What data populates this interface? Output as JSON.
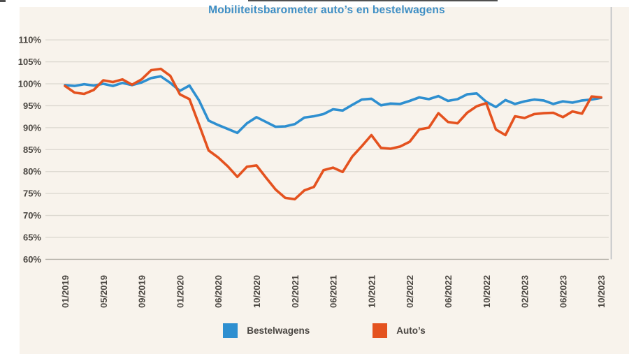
{
  "page": {
    "background": "#ffffff",
    "panel_background": "#f8f3ec"
  },
  "chart_data": {
    "type": "line",
    "title": "Mobiliteitsbarometer auto’s en bestelwagens",
    "title_color": "#3d8ec5",
    "xlabel": "",
    "ylabel": "",
    "ylim": [
      60,
      110
    ],
    "grid": "horizontal",
    "legend_position": "bottom",
    "y_tick_labels": [
      "110%",
      "105%",
      "100%",
      "95%",
      "90%",
      "85%",
      "80%",
      "75%",
      "70%",
      "65%",
      "60%"
    ],
    "x_tick_every": 4,
    "x_tick_labels": [
      "01/2019",
      "05/2019",
      "09/2019",
      "01/2020",
      "06/2020",
      "10/2020",
      "02/2021",
      "06/2021",
      "10/2021",
      "02/2022",
      "06/2022",
      "10/2022",
      "02/2023",
      "06/2023",
      "10/2023"
    ],
    "categories": [
      "01/2019",
      "02/2019",
      "03/2019",
      "04/2019",
      "05/2019",
      "06/2019",
      "07/2019",
      "08/2019",
      "09/2019",
      "10/2019",
      "11/2019",
      "12/2019",
      "01/2020",
      "02/2020",
      "03/2020",
      "05/2020",
      "06/2020",
      "07/2020",
      "08/2020",
      "09/2020",
      "10/2020",
      "11/2020",
      "12/2020",
      "01/2021",
      "02/2021",
      "03/2021",
      "04/2021",
      "05/2021",
      "06/2021",
      "07/2021",
      "08/2021",
      "09/2021",
      "10/2021",
      "11/2021",
      "12/2021",
      "01/2022",
      "02/2022",
      "03/2022",
      "04/2022",
      "05/2022",
      "06/2022",
      "07/2022",
      "08/2022",
      "09/2022",
      "10/2022",
      "11/2022",
      "12/2022",
      "01/2023",
      "02/2023",
      "03/2023",
      "04/2023",
      "05/2023",
      "06/2023",
      "07/2023",
      "08/2023",
      "09/2023",
      "10/2023"
    ],
    "series": [
      {
        "name": "Bestelwagens",
        "color": "#2e8fd0",
        "values": [
          99.7,
          99.5,
          99.9,
          99.6,
          100.0,
          99.5,
          100.2,
          99.7,
          100.3,
          101.3,
          101.7,
          100.2,
          98.4,
          99.6,
          96.2,
          91.6,
          90.6,
          89.7,
          88.8,
          91.0,
          92.4,
          91.3,
          90.2,
          90.3,
          90.8,
          92.3,
          92.6,
          93.1,
          94.2,
          93.9,
          95.2,
          96.4,
          96.6,
          95.1,
          95.5,
          95.4,
          96.1,
          96.9,
          96.5,
          97.2,
          96.1,
          96.5,
          97.6,
          97.8,
          95.9,
          94.7,
          96.3,
          95.4,
          96.0,
          96.4,
          96.2,
          95.4,
          96.0,
          95.7,
          96.2,
          96.4,
          96.8
        ]
      },
      {
        "name": "Auto’s",
        "color": "#e4521f",
        "values": [
          99.5,
          98.0,
          97.7,
          98.6,
          100.8,
          100.4,
          101.0,
          99.8,
          101.0,
          103.1,
          103.4,
          101.8,
          97.6,
          96.5,
          90.7,
          84.8,
          83.2,
          81.2,
          78.8,
          81.1,
          81.4,
          78.6,
          75.9,
          74.0,
          73.7,
          75.7,
          76.5,
          80.3,
          80.9,
          79.9,
          83.4,
          85.8,
          88.3,
          85.4,
          85.2,
          85.7,
          86.8,
          89.6,
          90.0,
          93.3,
          91.3,
          91.0,
          93.4,
          94.9,
          95.6,
          89.6,
          88.3,
          92.6,
          92.2,
          93.1,
          93.3,
          93.4,
          92.4,
          93.7,
          93.2,
          97.1,
          96.9
        ]
      }
    ]
  },
  "legend": {
    "items": [
      {
        "label": "Bestelwagens",
        "color": "#2e8fd0"
      },
      {
        "label": "Auto’s",
        "color": "#e4521f"
      }
    ]
  }
}
